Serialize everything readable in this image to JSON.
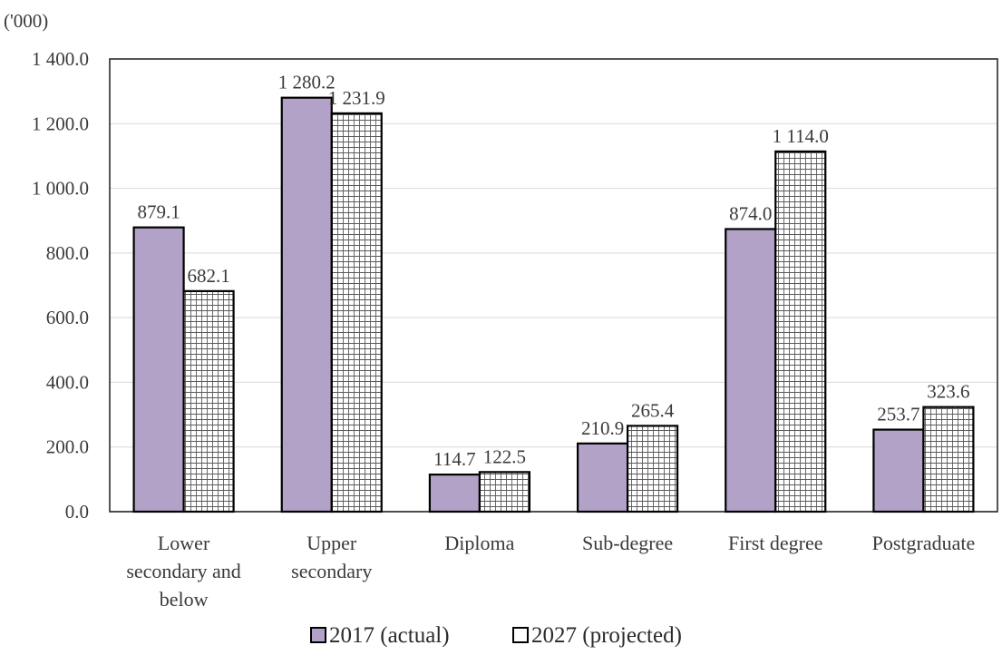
{
  "chart_data": {
    "type": "bar",
    "unit_label": "('000)",
    "categories": [
      [
        "Lower",
        "secondary and",
        "below"
      ],
      [
        "Upper",
        "secondary"
      ],
      [
        "Diploma"
      ],
      [
        "Sub-degree"
      ],
      [
        "First degree"
      ],
      [
        "Postgraduate"
      ]
    ],
    "series": [
      {
        "name": "2017 (actual)",
        "values": [
          879.1,
          1280.2,
          114.7,
          210.9,
          874.0,
          253.7
        ],
        "labels": [
          "879.1",
          "1 280.2",
          "114.7",
          "210.9",
          "874.0",
          "253.7"
        ],
        "color": "#b3a2c7",
        "fill_style": "solid"
      },
      {
        "name": "2027 (projected)",
        "values": [
          682.1,
          1231.9,
          122.5,
          265.4,
          1114.0,
          323.6
        ],
        "labels": [
          "682.1",
          "1 231.9",
          "122.5",
          "265.4",
          "1 114.0",
          "323.6"
        ],
        "color": "#ffffff",
        "fill_style": "grid-hatch"
      }
    ],
    "ylim": [
      0,
      1400
    ],
    "yticks": [
      0,
      200,
      400,
      600,
      800,
      1000,
      1200,
      1400
    ],
    "ytick_labels": [
      "0.0",
      "200.0",
      "400.0",
      "600.0",
      "800.0",
      "1 000.0",
      "1 200.0",
      "1 400.0"
    ],
    "grid": true,
    "legend_position": "bottom-center",
    "xlabel": "",
    "ylabel": ""
  }
}
